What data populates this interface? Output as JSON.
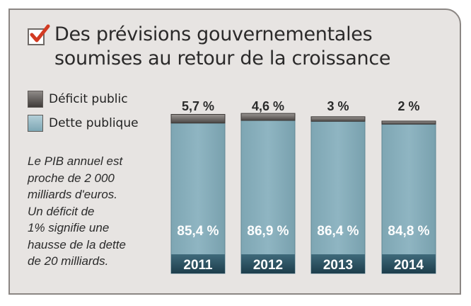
{
  "title": "Des prévisions gouvernementales soumises au retour de la croissance",
  "legend": [
    {
      "label": "Déficit public",
      "color": "#4a4644"
    },
    {
      "label": "Dette publique",
      "color": "#8fb5c2"
    }
  ],
  "note": "Le PIB annuel est\nproche de 2 000\nmilliards d'euros.\nUn déficit de\n1% signifie une\nhausse de la dette\nde 20 milliards.",
  "colors": {
    "background": "#e7e4e2",
    "border": "#8b8683",
    "deficit": "#4a4644",
    "debt": "#8fb5c2",
    "year_band": "#1d3d4b",
    "check": "#d23a22"
  },
  "chart_data": {
    "type": "bar",
    "categories": [
      "2011",
      "2012",
      "2013",
      "2014"
    ],
    "series": [
      {
        "name": "Déficit public",
        "values": [
          5.7,
          4.6,
          3,
          2
        ],
        "labels": [
          "5,7 %",
          "4,6 %",
          "3 %",
          "2 %"
        ]
      },
      {
        "name": "Dette publique",
        "values": [
          85.4,
          86.9,
          86.4,
          84.8
        ],
        "labels": [
          "85,4 %",
          "86,9 %",
          "86,4 %",
          "84,8 %"
        ]
      }
    ]
  }
}
